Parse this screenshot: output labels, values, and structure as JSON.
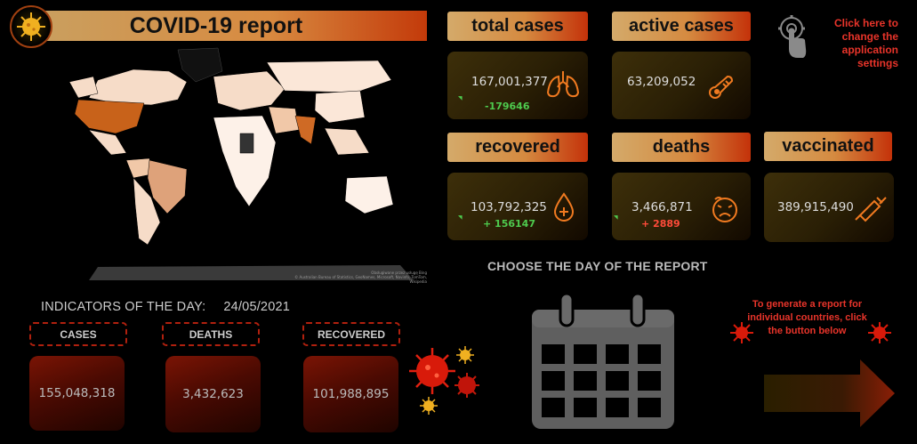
{
  "header": {
    "title": "COVID-19 report",
    "logo_icon": "virus-icon"
  },
  "map": {
    "credit_line1": "Obsługiwane przez usługę Bing",
    "credit_line2": "© Australian Bureau of Statistics, GeoNames, Microsoft, Navinfo, TomTom, Wikipedia"
  },
  "kpis": {
    "total_cases": {
      "label": "total cases",
      "value": "167,001,377",
      "delta": "-179646",
      "icon": "lungs-icon"
    },
    "active_cases": {
      "label": "active cases",
      "value": "63,209,052",
      "icon": "thermometer-icon"
    },
    "recovered": {
      "label": "recovered",
      "value": "103,792,325",
      "delta": "+ 156147",
      "icon": "blood-drop-plus-icon"
    },
    "deaths": {
      "label": "deaths",
      "value": "3,466,871",
      "delta": "+ 2889",
      "icon": "sick-face-icon"
    },
    "vaccinated": {
      "label": "vaccinated",
      "value": "389,915,490",
      "icon": "syringe-icon"
    }
  },
  "settings": {
    "note": "Click here to change the application settings",
    "icon": "settings-touch-icon"
  },
  "day_picker": {
    "label": "CHOOSE THE DAY OF THE REPORT",
    "icon": "calendar-icon"
  },
  "indicators": {
    "title": "INDICATORS OF THE DAY:",
    "date": "24/05/2021",
    "cases": {
      "label": "CASES",
      "value": "155,048,318"
    },
    "deaths": {
      "label": "DEATHS",
      "value": "3,432,623"
    },
    "recovered": {
      "label": "RECOVERED",
      "value": "101,988,895"
    }
  },
  "report": {
    "note": "To generate a report for individual countries, click the button below",
    "button_icon": "arrow-right-icon"
  },
  "colors": {
    "accent_red": "#e8342a",
    "gold": "#d4aa6a",
    "delta_green": "#4ecb4e",
    "delta_red": "#ff4b3a"
  }
}
